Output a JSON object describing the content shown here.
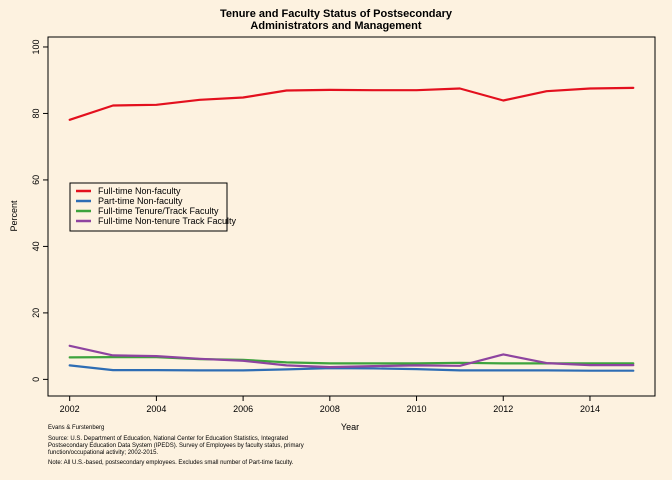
{
  "chart_data": {
    "type": "line",
    "title": "Tenure and Faculty Status of Postsecondary",
    "subtitle": "Administrators and Management",
    "xlabel": "Year",
    "ylabel": "Percent",
    "xlim": [
      2001.5,
      2015.5
    ],
    "ylim": [
      -5,
      103
    ],
    "xticks": [
      2002,
      2004,
      2006,
      2008,
      2010,
      2012,
      2014
    ],
    "yticks": [
      0,
      20,
      40,
      60,
      80,
      100
    ],
    "grid": false,
    "legend_position": "left-middle",
    "x": [
      2002,
      2003,
      2004,
      2005,
      2006,
      2007,
      2008,
      2009,
      2010,
      2011,
      2012,
      2013,
      2014,
      2015
    ],
    "series": [
      {
        "name": "Full-time Non-faculty",
        "color": "#E3101E",
        "values": [
          78.1,
          82.4,
          82.6,
          84.1,
          84.8,
          86.9,
          87.1,
          87.0,
          87.0,
          87.5,
          83.9,
          86.7,
          87.5,
          87.7
        ]
      },
      {
        "name": "Part-time Non-faculty",
        "color": "#2E6DB4",
        "values": [
          4.2,
          2.8,
          2.8,
          2.7,
          2.7,
          3.0,
          3.4,
          3.3,
          3.1,
          2.7,
          2.7,
          2.7,
          2.6,
          2.6
        ]
      },
      {
        "name": "Full-time Tenure/Track Faculty",
        "color": "#3DA33D",
        "values": [
          6.6,
          6.7,
          6.7,
          6.1,
          5.9,
          5.1,
          4.8,
          4.8,
          4.8,
          5.0,
          4.8,
          4.8,
          4.8,
          4.8
        ]
      },
      {
        "name": "Full-time Non-tenure Track Faculty",
        "color": "#8E44A0",
        "values": [
          10.1,
          7.2,
          7.0,
          6.2,
          5.6,
          4.2,
          3.7,
          4.0,
          4.2,
          4.1,
          7.5,
          4.9,
          4.3,
          4.3
        ]
      }
    ]
  },
  "notes": {
    "credit": "Evans & Furstenberg",
    "source_1": "Source: U.S. Department of Education, National Center for Education Statistics, Integrated",
    "source_2": "Postsecondary Education Data System (IPEDS).  Survey of Employees by faculty status, primary",
    "source_3": "function/occupational activity; 2002-2015.",
    "note": "Note: All U.S.-based, postsecondary employees.  Excludes small number of Part-time faculty."
  }
}
